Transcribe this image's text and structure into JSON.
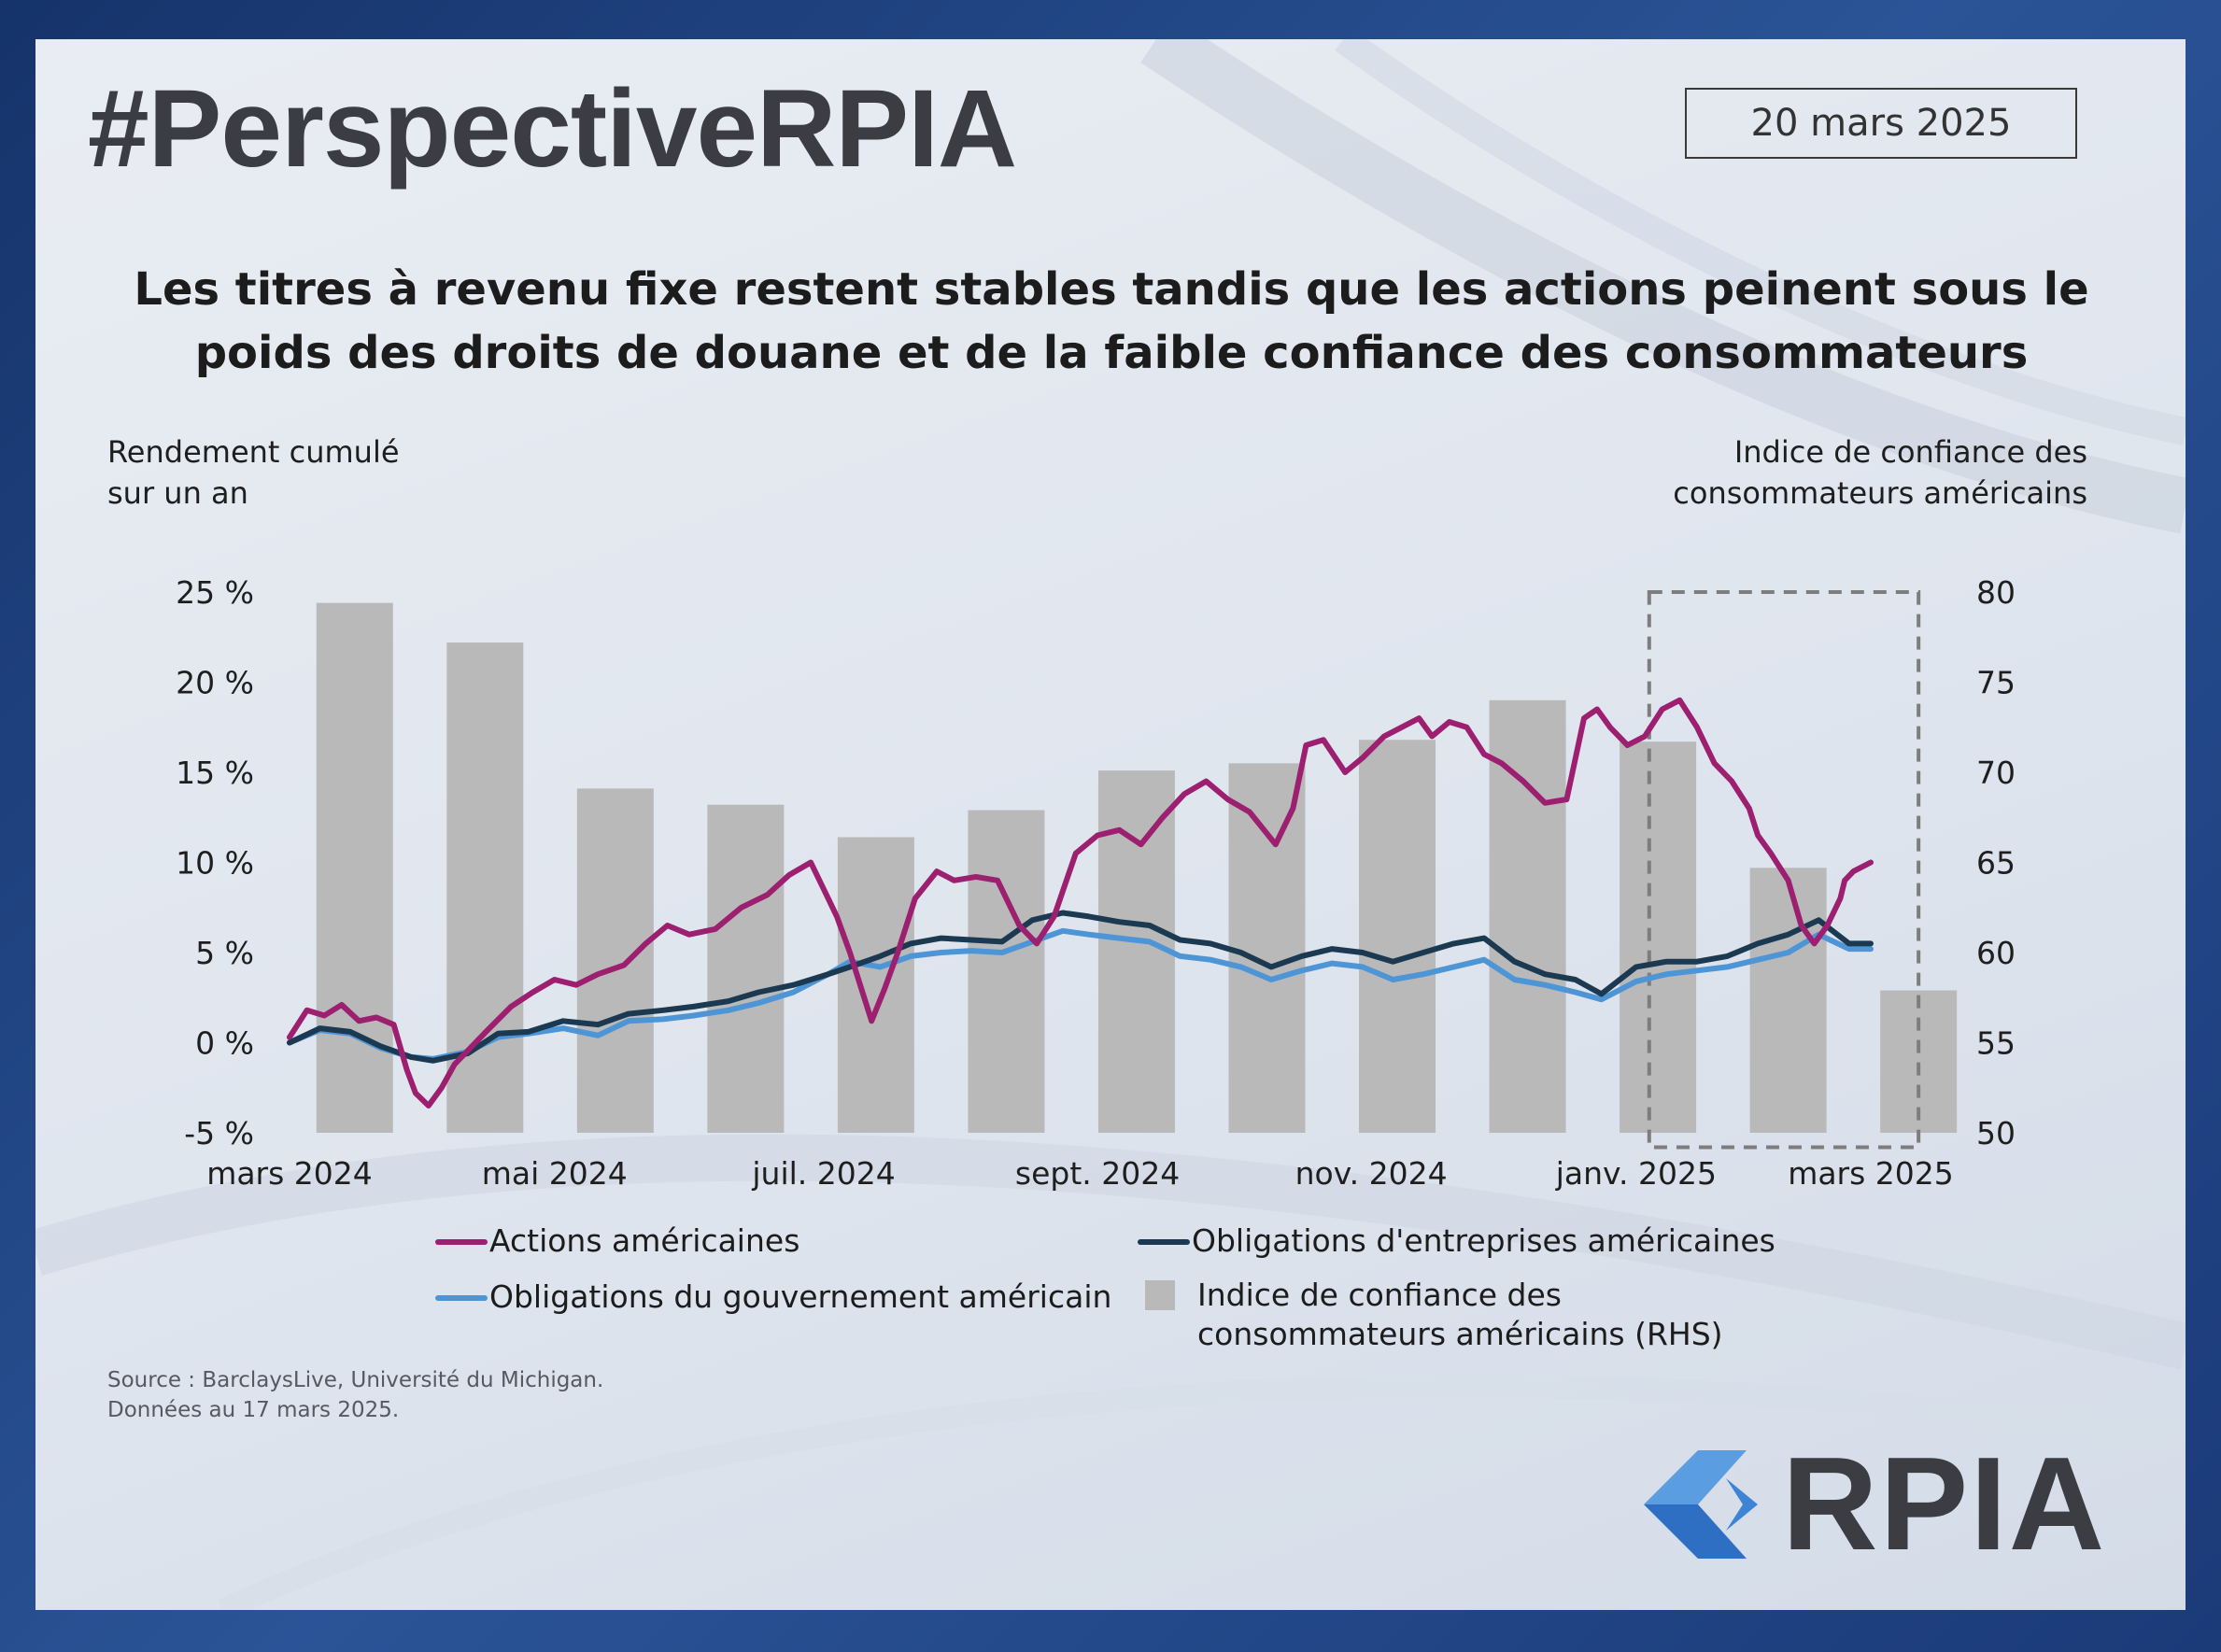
{
  "header": {
    "brand_title": "#PerspectiveRPIA",
    "date": "20 mars 2025"
  },
  "chart_title": "Les titres à revenu fixe restent stables tandis que les actions peinent sous le poids des droits de douane et de la faible confiance des consommateurs",
  "source": {
    "line1": "Source : BarclaysLive, Université du Michigan.",
    "line2": "Données au 17 mars 2025."
  },
  "logo": {
    "text": "RPIA",
    "icon": "rpia-chevron-logo-icon"
  },
  "colors": {
    "us_equities": "#9c1f70",
    "us_corporate": "#1b3a52",
    "us_government": "#4e95d6",
    "bars": "#b9b9b9"
  },
  "chart_data": {
    "type": "line",
    "ylabel_left": [
      "Rendement cumulé",
      "sur un an"
    ],
    "ylabel_right": [
      "Indice de confiance des",
      "consommateurs américains"
    ],
    "y_left": {
      "min": -5,
      "max": 25,
      "ticks": [
        "-5 %",
        "0 %",
        "5 %",
        "10 %",
        "15 %",
        "20 %",
        "25 %"
      ],
      "tick_values": [
        -5,
        0,
        5,
        10,
        15,
        20,
        25
      ]
    },
    "y_right": {
      "min": 50,
      "max": 80,
      "ticks": [
        "50",
        "55",
        "60",
        "65",
        "70",
        "75",
        "80"
      ],
      "tick_values": [
        50,
        55,
        60,
        65,
        70,
        75,
        80
      ]
    },
    "x_axis": {
      "start": "2024-03-18",
      "end": "2025-03-17",
      "ticks": [
        {
          "label": "mars 2024",
          "date": "2024-03-18"
        },
        {
          "label": "mai 2024",
          "date": "2024-05-18"
        },
        {
          "label": "juil. 2024",
          "date": "2024-07-19"
        },
        {
          "label": "sept. 2024",
          "date": "2024-09-20"
        },
        {
          "label": "nov. 2024",
          "date": "2024-11-22"
        },
        {
          "label": "janv. 2025",
          "date": "2025-01-22"
        },
        {
          "label": "mars 2025",
          "date": "2025-03-17"
        }
      ]
    },
    "highlight_box": {
      "x_from": "2025-01-25",
      "x_to": "2025-03-28",
      "y_from": 49.2,
      "y_to": 80,
      "axis": "right",
      "style": "dashed"
    },
    "bars": {
      "name": "Indice de confiance des consommateurs américains (RHS)",
      "axis": "right",
      "points": [
        {
          "date": "2024-04-02",
          "value": 79.4
        },
        {
          "date": "2024-05-02",
          "value": 77.2
        },
        {
          "date": "2024-06-01",
          "value": 69.1
        },
        {
          "date": "2024-07-01",
          "value": 68.2
        },
        {
          "date": "2024-07-31",
          "value": 66.4
        },
        {
          "date": "2024-08-30",
          "value": 67.9
        },
        {
          "date": "2024-09-29",
          "value": 70.1
        },
        {
          "date": "2024-10-29",
          "value": 70.5
        },
        {
          "date": "2024-11-28",
          "value": 71.8
        },
        {
          "date": "2024-12-28",
          "value": 74.0
        },
        {
          "date": "2025-01-27",
          "value": 71.7
        },
        {
          "date": "2025-02-26",
          "value": 64.7
        },
        {
          "date": "2025-03-28",
          "value": 57.9
        }
      ]
    },
    "series": [
      {
        "name": "Actions américaines",
        "key": "us_equities",
        "axis": "left",
        "x": [
          "2024-03-18",
          "2024-03-22",
          "2024-03-26",
          "2024-03-30",
          "2024-04-03",
          "2024-04-07",
          "2024-04-11",
          "2024-04-14",
          "2024-04-16",
          "2024-04-19",
          "2024-04-22",
          "2024-04-25",
          "2024-04-29",
          "2024-05-03",
          "2024-05-08",
          "2024-05-13",
          "2024-05-18",
          "2024-05-23",
          "2024-05-28",
          "2024-06-03",
          "2024-06-08",
          "2024-06-13",
          "2024-06-18",
          "2024-06-24",
          "2024-06-30",
          "2024-07-06",
          "2024-07-11",
          "2024-07-16",
          "2024-07-19",
          "2024-07-22",
          "2024-07-25",
          "2024-07-30",
          "2024-08-02",
          "2024-08-05",
          "2024-08-09",
          "2024-08-14",
          "2024-08-18",
          "2024-08-23",
          "2024-08-28",
          "2024-09-02",
          "2024-09-06",
          "2024-09-10",
          "2024-09-15",
          "2024-09-20",
          "2024-09-25",
          "2024-09-30",
          "2024-10-05",
          "2024-10-10",
          "2024-10-15",
          "2024-10-20",
          "2024-10-25",
          "2024-10-31",
          "2024-11-04",
          "2024-11-07",
          "2024-11-11",
          "2024-11-16",
          "2024-11-20",
          "2024-11-25",
          "2024-11-29",
          "2024-12-03",
          "2024-12-06",
          "2024-12-10",
          "2024-12-14",
          "2024-12-18",
          "2024-12-22",
          "2024-12-27",
          "2025-01-01",
          "2025-01-06",
          "2025-01-10",
          "2025-01-13",
          "2025-01-16",
          "2025-01-20",
          "2025-01-24",
          "2025-01-28",
          "2025-02-01",
          "2025-02-05",
          "2025-02-09",
          "2025-02-13",
          "2025-02-17",
          "2025-02-19",
          "2025-02-22",
          "2025-02-26",
          "2025-03-01",
          "2025-03-04",
          "2025-03-07",
          "2025-03-10",
          "2025-03-11",
          "2025-03-13",
          "2025-03-17"
        ],
        "y": [
          0.3,
          1.8,
          1.5,
          2.1,
          1.2,
          1.4,
          1.0,
          -1.5,
          -2.8,
          -3.5,
          -2.5,
          -1.2,
          -0.2,
          0.8,
          2.0,
          2.8,
          3.5,
          3.2,
          3.8,
          4.3,
          5.5,
          6.5,
          6.0,
          6.3,
          7.5,
          8.2,
          9.3,
          10.0,
          8.5,
          7.0,
          5.0,
          1.2,
          3.0,
          5.0,
          8.0,
          9.5,
          9.0,
          9.2,
          9.0,
          6.5,
          5.5,
          7.0,
          10.5,
          11.5,
          11.8,
          11.0,
          12.5,
          13.8,
          14.5,
          13.5,
          12.8,
          11.0,
          13.0,
          16.5,
          16.8,
          15.0,
          15.8,
          17.0,
          17.5,
          18.0,
          17.0,
          17.8,
          17.5,
          16.0,
          15.5,
          14.5,
          13.3,
          13.5,
          18.0,
          18.5,
          17.5,
          16.5,
          17.0,
          18.5,
          19.0,
          17.5,
          15.5,
          14.5,
          13.0,
          11.5,
          10.5,
          9.0,
          6.5,
          5.5,
          6.5,
          8.0,
          9.0,
          9.5,
          10.0
        ]
      },
      {
        "name": "Obligations d'entreprises américaines",
        "key": "us_corporate",
        "axis": "left",
        "x": [
          "2024-03-18",
          "2024-03-25",
          "2024-04-01",
          "2024-04-08",
          "2024-04-15",
          "2024-04-20",
          "2024-04-28",
          "2024-05-05",
          "2024-05-12",
          "2024-05-20",
          "2024-05-28",
          "2024-06-04",
          "2024-06-12",
          "2024-06-19",
          "2024-06-27",
          "2024-07-04",
          "2024-07-12",
          "2024-07-20",
          "2024-07-25",
          "2024-08-01",
          "2024-08-08",
          "2024-08-15",
          "2024-08-22",
          "2024-08-29",
          "2024-09-05",
          "2024-09-12",
          "2024-09-18",
          "2024-09-25",
          "2024-10-02",
          "2024-10-09",
          "2024-10-16",
          "2024-10-23",
          "2024-10-30",
          "2024-11-06",
          "2024-11-13",
          "2024-11-20",
          "2024-11-27",
          "2024-12-04",
          "2024-12-11",
          "2024-12-18",
          "2024-12-25",
          "2025-01-01",
          "2025-01-08",
          "2025-01-14",
          "2025-01-22",
          "2025-01-29",
          "2025-02-05",
          "2025-02-12",
          "2025-02-19",
          "2025-02-26",
          "2025-03-05",
          "2025-03-12",
          "2025-03-17"
        ],
        "y": [
          0,
          0.8,
          0.6,
          -0.2,
          -0.8,
          -1.0,
          -0.6,
          0.5,
          0.6,
          1.2,
          1.0,
          1.6,
          1.8,
          2.0,
          2.3,
          2.8,
          3.2,
          3.8,
          4.2,
          4.8,
          5.5,
          5.8,
          5.7,
          5.6,
          6.8,
          7.2,
          7.0,
          6.7,
          6.5,
          5.7,
          5.5,
          5.0,
          4.2,
          4.8,
          5.2,
          5.0,
          4.5,
          5.0,
          5.5,
          5.8,
          4.5,
          3.8,
          3.5,
          2.7,
          4.2,
          4.5,
          4.5,
          4.8,
          5.5,
          6.0,
          6.8,
          5.5,
          5.5
        ]
      },
      {
        "name": "Obligations du gouvernement américain",
        "key": "us_government",
        "axis": "left",
        "x": [
          "2024-03-18",
          "2024-03-25",
          "2024-04-01",
          "2024-04-08",
          "2024-04-15",
          "2024-04-20",
          "2024-04-28",
          "2024-05-05",
          "2024-05-12",
          "2024-05-20",
          "2024-05-28",
          "2024-06-04",
          "2024-06-12",
          "2024-06-19",
          "2024-06-27",
          "2024-07-04",
          "2024-07-12",
          "2024-07-20",
          "2024-07-25",
          "2024-08-01",
          "2024-08-08",
          "2024-08-15",
          "2024-08-22",
          "2024-08-29",
          "2024-09-05",
          "2024-09-12",
          "2024-09-18",
          "2024-09-25",
          "2024-10-02",
          "2024-10-09",
          "2024-10-16",
          "2024-10-23",
          "2024-10-30",
          "2024-11-06",
          "2024-11-13",
          "2024-11-20",
          "2024-11-27",
          "2024-12-04",
          "2024-12-11",
          "2024-12-18",
          "2024-12-25",
          "2025-01-01",
          "2025-01-08",
          "2025-01-14",
          "2025-01-22",
          "2025-01-29",
          "2025-02-05",
          "2025-02-12",
          "2025-02-19",
          "2025-02-26",
          "2025-03-05",
          "2025-03-12",
          "2025-03-17"
        ],
        "y": [
          0,
          0.7,
          0.5,
          -0.3,
          -0.8,
          -0.9,
          -0.5,
          0.3,
          0.5,
          0.8,
          0.4,
          1.2,
          1.3,
          1.5,
          1.8,
          2.2,
          2.8,
          3.8,
          4.5,
          4.2,
          4.8,
          5.0,
          5.1,
          5.0,
          5.6,
          6.2,
          6.0,
          5.8,
          5.6,
          4.8,
          4.6,
          4.2,
          3.5,
          4.0,
          4.4,
          4.2,
          3.5,
          3.8,
          4.2,
          4.6,
          3.5,
          3.2,
          2.8,
          2.4,
          3.4,
          3.8,
          4.0,
          4.2,
          4.6,
          5.0,
          6.0,
          5.2,
          5.2
        ]
      }
    ]
  },
  "legend": {
    "us_equities": "Actions américaines",
    "us_corporate": "Obligations d'entreprises américaines",
    "us_government": "Obligations du gouvernement américain",
    "bars_line1": "Indice de confiance des",
    "bars_line2": "consommateurs américains (RHS)"
  }
}
